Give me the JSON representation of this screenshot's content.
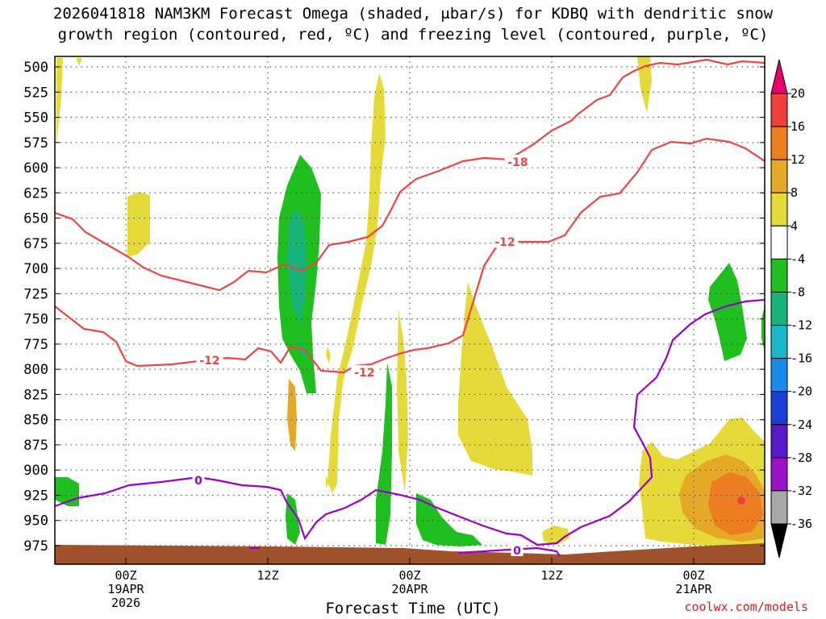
{
  "title_line1": "2026041818 NAM3KM Forecast Omega (shaded, μbar/s) for KDBQ with dendritic snow",
  "title_line2": "growth region (contoured, red, ºC) and freezing level (contoured, purple, ºC)",
  "credit": "coolwx.com/models",
  "colors": {
    "dgz": "#ee4444",
    "freezing": "#9900cc",
    "ground": "#a0522d",
    "gridline": "#555555"
  },
  "chart_data": {
    "type": "time-height cross section",
    "xlabel": "Forecast Time (UTC)",
    "y_axis": {
      "unit": "mb",
      "levels": [
        500,
        525,
        550,
        575,
        600,
        625,
        650,
        675,
        700,
        725,
        750,
        775,
        800,
        825,
        850,
        875,
        900,
        925,
        950,
        975
      ],
      "range": [
        500,
        975
      ]
    },
    "x_axis": {
      "range_forecast_hours": [
        0,
        60
      ],
      "ticks": [
        {
          "forecast_hour": 6,
          "label": "00Z",
          "sublabel": "19APR",
          "sublabel2": "2026"
        },
        {
          "forecast_hour": 18,
          "label": "12Z",
          "sublabel": "",
          "sublabel2": ""
        },
        {
          "forecast_hour": 30,
          "label": "00Z",
          "sublabel": "20APR",
          "sublabel2": ""
        },
        {
          "forecast_hour": 42,
          "label": "12Z",
          "sublabel": "",
          "sublabel2": ""
        },
        {
          "forecast_hour": 54,
          "label": "00Z",
          "sublabel": "21APR",
          "sublabel2": ""
        }
      ]
    },
    "colorbar": {
      "unit": "μbar/s",
      "labels": [
        "20",
        "16",
        "12",
        "8",
        "4",
        "-4",
        "-8",
        "-12",
        "-16",
        "-20",
        "-24",
        "-28",
        "-32",
        "-36"
      ],
      "bins": [
        {
          "from": 20,
          "to": 24,
          "color": "#e8006e"
        },
        {
          "from": 16,
          "to": 20,
          "color": "#ef4040"
        },
        {
          "from": 12,
          "to": 16,
          "color": "#ed7d21"
        },
        {
          "from": 8,
          "to": 12,
          "color": "#e6a827"
        },
        {
          "from": 4,
          "to": 8,
          "color": "#e6d93a"
        },
        {
          "from": -4,
          "to": 4,
          "color": "#ffffff"
        },
        {
          "from": -8,
          "to": -4,
          "color": "#1fbf1f"
        },
        {
          "from": -12,
          "to": -8,
          "color": "#17b37a"
        },
        {
          "from": -16,
          "to": -12,
          "color": "#18b8c8"
        },
        {
          "from": -20,
          "to": -16,
          "color": "#1a8ae8"
        },
        {
          "from": -24,
          "to": -20,
          "color": "#1a3fd6"
        },
        {
          "from": -28,
          "to": -24,
          "color": "#5a18c8"
        },
        {
          "from": -32,
          "to": -28,
          "color": "#9c10c6"
        },
        {
          "from": -36,
          "to": -32,
          "color": "#a8a8a8"
        },
        {
          "from": -40,
          "to": -36,
          "color": "#000000"
        }
      ]
    },
    "isotherm_labels": [
      {
        "value": "-18",
        "color": "#ee4444"
      },
      {
        "value": "-12",
        "color": "#ee4444"
      },
      {
        "value": "-12",
        "color": "#ee4444"
      },
      {
        "value": "-12",
        "color": "#ee4444"
      },
      {
        "value": "0",
        "color": "#9900cc"
      },
      {
        "value": "0",
        "color": "#9900cc"
      }
    ]
  }
}
